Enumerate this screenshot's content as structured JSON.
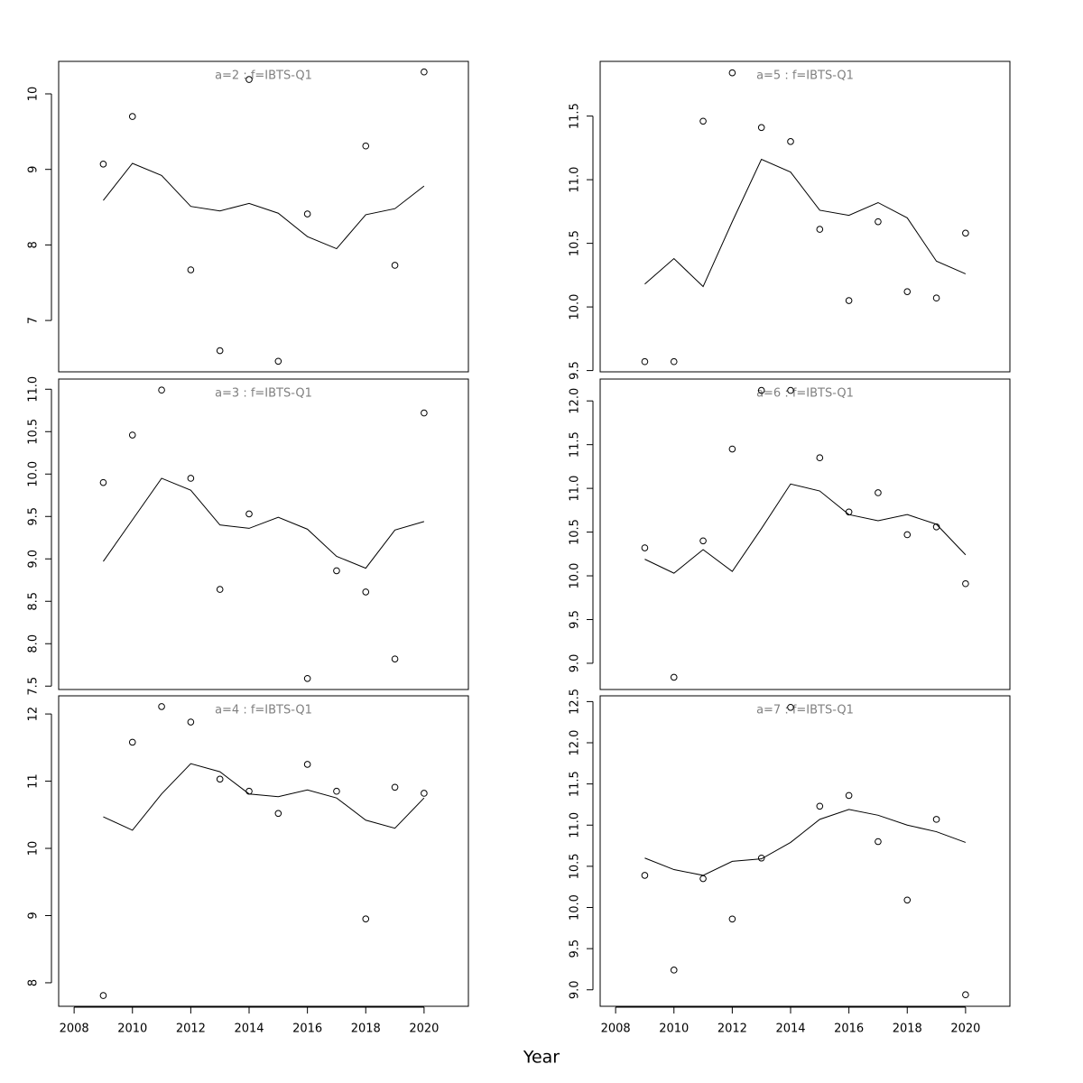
{
  "xlabel": "Year",
  "xlim": [
    2007.47,
    2021.52
  ],
  "xticks": [
    2008,
    2010,
    2012,
    2014,
    2016,
    2018,
    2020
  ],
  "chart_data": [
    {
      "type": "line",
      "title": "a=2 : f=IBTS-Q1",
      "x": [
        2009,
        2010,
        2011,
        2012,
        2013,
        2014,
        2015,
        2016,
        2017,
        2018,
        2019,
        2020
      ],
      "ylim": [
        6.32,
        10.43
      ],
      "yticks": [
        7,
        8,
        9,
        10
      ],
      "series": [
        {
          "style": "points",
          "color": "#000000",
          "values": [
            9.07,
            9.7,
            null,
            7.67,
            6.6,
            10.19,
            6.46,
            8.41,
            null,
            9.31,
            7.73,
            10.29
          ]
        },
        {
          "style": "line",
          "color": "#000000",
          "values": [
            8.59,
            9.08,
            8.92,
            8.51,
            8.45,
            8.55,
            8.42,
            8.11,
            7.95,
            8.4,
            8.48,
            8.78
          ]
        }
      ]
    },
    {
      "type": "line",
      "title": "a=3 : f=IBTS-Q1",
      "x": [
        2009,
        2010,
        2011,
        2012,
        2013,
        2014,
        2015,
        2016,
        2017,
        2018,
        2019,
        2020
      ],
      "ylim": [
        7.46,
        11.12
      ],
      "yticks": [
        7.5,
        {
          "value": 8,
          "label": "8.0"
        },
        8.5,
        {
          "value": 9,
          "label": "9.0"
        },
        9.5,
        {
          "value": 10,
          "label": "10.0"
        },
        10.5,
        {
          "value": 11,
          "label": "11.0"
        }
      ],
      "series": [
        {
          "style": "points",
          "color": "#000000",
          "values": [
            9.9,
            10.46,
            10.99,
            9.95,
            8.64,
            9.53,
            null,
            7.59,
            8.86,
            8.61,
            7.82,
            10.72
          ]
        },
        {
          "style": "line",
          "color": "#000000",
          "values": [
            8.97,
            9.46,
            9.95,
            9.81,
            9.4,
            9.36,
            9.49,
            9.35,
            9.03,
            8.89,
            9.34,
            9.44
          ]
        }
      ]
    },
    {
      "type": "line",
      "title": "a=4 : f=IBTS-Q1",
      "x": [
        2009,
        2010,
        2011,
        2012,
        2013,
        2014,
        2015,
        2016,
        2017,
        2018,
        2019,
        2020
      ],
      "ylim": [
        7.65,
        12.27
      ],
      "yticks": [
        8,
        9,
        10,
        11,
        12
      ],
      "series": [
        {
          "style": "points",
          "color": "#000000",
          "values": [
            7.81,
            11.58,
            12.11,
            11.88,
            11.03,
            10.85,
            10.52,
            11.25,
            10.85,
            8.95,
            10.91,
            10.82
          ]
        },
        {
          "style": "line",
          "color": "#000000",
          "values": [
            10.47,
            10.27,
            10.81,
            11.26,
            11.14,
            10.81,
            10.77,
            10.87,
            10.75,
            10.42,
            10.3,
            10.75
          ]
        }
      ]
    },
    {
      "type": "line",
      "title": "a=5 : f=IBTS-Q1",
      "x": [
        2009,
        2010,
        2011,
        2012,
        2013,
        2014,
        2015,
        2016,
        2017,
        2018,
        2019,
        2020
      ],
      "ylim": [
        9.49,
        11.93
      ],
      "yticks": [
        9.5,
        {
          "value": 10,
          "label": "10.0"
        },
        10.5,
        {
          "value": 11,
          "label": "11.0"
        },
        11.5
      ],
      "series": [
        {
          "style": "points",
          "color": "#000000",
          "values": [
            9.57,
            9.57,
            11.46,
            11.84,
            11.41,
            11.3,
            10.61,
            10.05,
            10.67,
            10.12,
            10.07,
            10.58
          ]
        },
        {
          "style": "line",
          "color": "#000000",
          "values": [
            10.18,
            10.38,
            10.16,
            10.67,
            11.16,
            11.06,
            10.76,
            10.72,
            10.82,
            10.7,
            10.36,
            10.26
          ]
        }
      ]
    },
    {
      "type": "line",
      "title": "a=6 : f=IBTS-Q1",
      "x": [
        2009,
        2010,
        2011,
        2012,
        2013,
        2014,
        2015,
        2016,
        2017,
        2018,
        2019,
        2020
      ],
      "ylim": [
        8.7,
        12.25
      ],
      "yticks": [
        {
          "value": 9,
          "label": "9.0"
        },
        9.5,
        {
          "value": 10,
          "label": "10.0"
        },
        10.5,
        {
          "value": 11,
          "label": "11.0"
        },
        11.5,
        {
          "value": 12,
          "label": "12.0"
        }
      ],
      "series": [
        {
          "style": "points",
          "color": "#000000",
          "values": [
            10.32,
            8.84,
            10.4,
            11.45,
            12.12,
            12.12,
            11.35,
            10.73,
            10.95,
            10.47,
            10.56,
            9.91
          ]
        },
        {
          "style": "line",
          "color": "#000000",
          "values": [
            10.19,
            10.03,
            10.3,
            10.05,
            10.54,
            11.05,
            10.97,
            10.7,
            10.63,
            10.7,
            10.59,
            10.24
          ]
        }
      ]
    },
    {
      "type": "line",
      "title": "a=7 : f=IBTS-Q1",
      "x": [
        2009,
        2010,
        2011,
        2012,
        2013,
        2014,
        2015,
        2016,
        2017,
        2018,
        2019,
        2020
      ],
      "ylim": [
        8.8,
        12.57
      ],
      "yticks": [
        {
          "value": 9,
          "label": "9.0"
        },
        9.5,
        {
          "value": 10,
          "label": "10.0"
        },
        10.5,
        {
          "value": 11,
          "label": "11.0"
        },
        11.5,
        {
          "value": 12,
          "label": "12.0"
        },
        12.5
      ],
      "series": [
        {
          "style": "points",
          "color": "#000000",
          "values": [
            10.39,
            9.24,
            10.35,
            9.86,
            10.6,
            12.43,
            11.23,
            11.36,
            10.8,
            10.09,
            11.07,
            8.94
          ]
        },
        {
          "style": "line",
          "color": "#000000",
          "values": [
            10.6,
            10.46,
            10.39,
            10.56,
            10.59,
            10.79,
            11.07,
            11.19,
            11.12,
            11.0,
            10.92,
            10.79
          ]
        }
      ]
    }
  ]
}
